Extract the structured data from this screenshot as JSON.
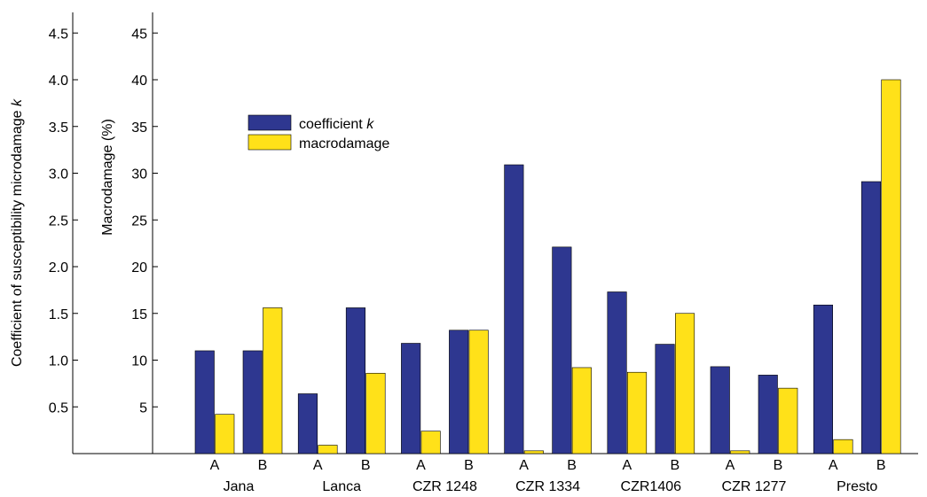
{
  "chart_data": {
    "type": "bar",
    "title": "",
    "ylabel_left": "Coefficient of susceptibility microdamage",
    "ylabel_left_symbol": "k",
    "ylabel_right": "Macrodamage (%)",
    "ylim_left": [
      0,
      4.7
    ],
    "ylim_right": [
      0,
      47
    ],
    "yticks_left": [
      "0.5",
      "1.0",
      "1.5",
      "2.0",
      "2.5",
      "3.0",
      "3.5",
      "4.0",
      "4.5"
    ],
    "yticks_right": [
      "5",
      "10",
      "15",
      "20",
      "25",
      "30",
      "35",
      "40",
      "45"
    ],
    "groups": [
      "Jana",
      "Lanca",
      "CZR 1248",
      "CZR 1334",
      "CZR1406",
      "CZR 1277",
      "Presto"
    ],
    "subgroups": [
      "A",
      "B"
    ],
    "categories": [
      "Jana A",
      "Jana B",
      "Lanca A",
      "Lanca B",
      "CZR 1248 A",
      "CZR 1248 B",
      "CZR 1334 A",
      "CZR 1334 B",
      "CZR1406 A",
      "CZR1406 B",
      "CZR 1277 A",
      "CZR 1277 B",
      "Presto A",
      "Presto B"
    ],
    "legend_position": "upper-left",
    "grid": false,
    "series": [
      {
        "name": "coefficient",
        "name_symbol": "k",
        "axis": "left",
        "color": "#2E3790",
        "values": [
          1.1,
          1.1,
          0.64,
          1.56,
          1.18,
          1.32,
          3.09,
          2.21,
          1.73,
          1.17,
          0.93,
          0.84,
          1.59,
          2.91
        ]
      },
      {
        "name": "macrodamage",
        "axis": "right",
        "color": "#FFE119",
        "values": [
          4.2,
          15.6,
          0.9,
          8.6,
          2.4,
          13.2,
          0.3,
          9.2,
          8.7,
          15.0,
          0.3,
          7.0,
          1.5,
          40.0
        ]
      }
    ]
  }
}
